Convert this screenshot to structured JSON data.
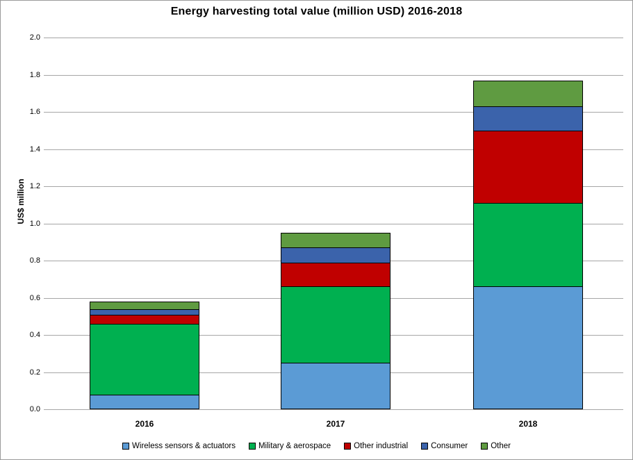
{
  "figure": {
    "background": "#FFFFFF",
    "border_color": "#9B9B9B",
    "gridline_color": "#A6A6A6",
    "bar_border_color": "#000000",
    "text_color": "#000000"
  },
  "chart_data": {
    "type": "bar",
    "stacked": true,
    "title": "Energy harvesting total value (million USD) 2016-2018",
    "xlabel": "",
    "ylabel": "US$ million",
    "categories": [
      "2016",
      "2017",
      "2018"
    ],
    "series": [
      {
        "name": "Wireless sensors & actuators",
        "color": "#5B9BD5",
        "values": [
          0.08,
          0.25,
          0.66
        ]
      },
      {
        "name": "Military & aerospace",
        "color": "#00B050",
        "values": [
          0.38,
          0.41,
          0.45
        ]
      },
      {
        "name": "Other industrial",
        "color": "#C00000",
        "values": [
          0.05,
          0.13,
          0.39
        ]
      },
      {
        "name": "Consumer",
        "color": "#3B63AB",
        "values": [
          0.03,
          0.08,
          0.13
        ]
      },
      {
        "name": "Other",
        "color": "#5F9B41",
        "values": [
          0.04,
          0.08,
          0.14
        ]
      }
    ],
    "stack_totals": [
      0.58,
      0.95,
      1.77
    ],
    "ylim": [
      0,
      2.0
    ],
    "ytick_step": 0.2,
    "ytick_decimals": 1,
    "grid": true,
    "legend_position": "bottom"
  }
}
